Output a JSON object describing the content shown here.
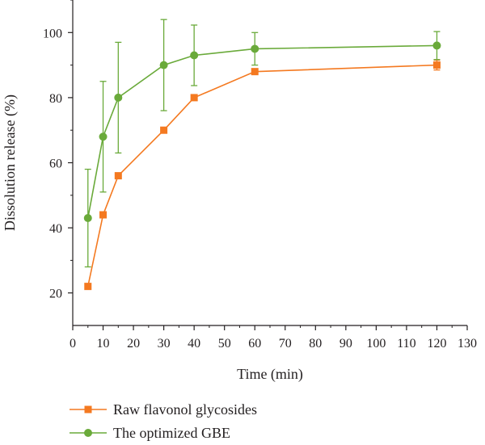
{
  "chart_data": {
    "type": "line",
    "xlabel": "Time (min)",
    "ylabel": "Dissolution release (%)",
    "xlim": [
      0,
      130
    ],
    "ylim": [
      10,
      110
    ],
    "xticks": [
      0,
      10,
      20,
      30,
      40,
      50,
      60,
      70,
      80,
      90,
      100,
      110,
      120,
      130
    ],
    "yticks": [
      20,
      40,
      60,
      80,
      100
    ],
    "grid": false,
    "legend_position": "bottom-left",
    "series": [
      {
        "name": "Raw flavonol glycosides",
        "color": "#f47920",
        "marker": "square",
        "x": [
          5,
          10,
          15,
          30,
          40,
          60,
          120
        ],
        "y": [
          22,
          44,
          56,
          70,
          80,
          88,
          90
        ],
        "error": [
          0,
          0,
          0,
          0,
          0,
          0,
          1.5
        ]
      },
      {
        "name": "The optimized GBE",
        "color": "#6aaa3a",
        "marker": "circle",
        "x": [
          5,
          10,
          15,
          30,
          40,
          60,
          120
        ],
        "y": [
          43,
          68,
          80,
          90,
          93,
          95,
          96
        ],
        "error": [
          15,
          17,
          17,
          14,
          9.3,
          5,
          4.3
        ]
      }
    ]
  }
}
